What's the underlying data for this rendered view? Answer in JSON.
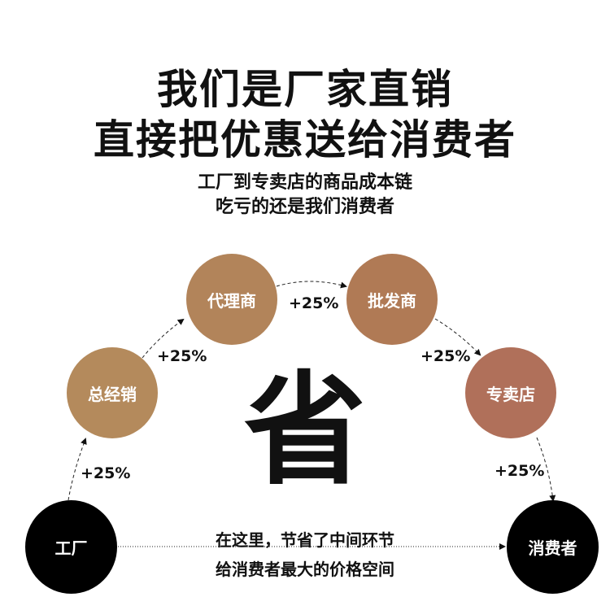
{
  "headline": [
    "我们是厂家直销",
    "直接把优惠送给消费者"
  ],
  "subhead": [
    "工厂到专卖店的商品成本链",
    "吃亏的还是我们消费者"
  ],
  "nodes": {
    "factory": "工厂",
    "distributor": "总经销",
    "agent": "代理商",
    "wholesaler": "批发商",
    "store": "专卖店",
    "consumer": "消费者"
  },
  "markups": [
    "+25%",
    "+25%",
    "+25%",
    "+25%",
    "+25%"
  ],
  "center_char": "省",
  "direct_text": [
    "在这里，节省了中间环节",
    "给消费者最大的价格空间"
  ],
  "colors": {
    "distributor": "#b48a5c",
    "agent": "#b2845a",
    "wholesaler": "#b07a55",
    "store": "#b0705a",
    "factory": "#000000",
    "consumer": "#000000"
  }
}
